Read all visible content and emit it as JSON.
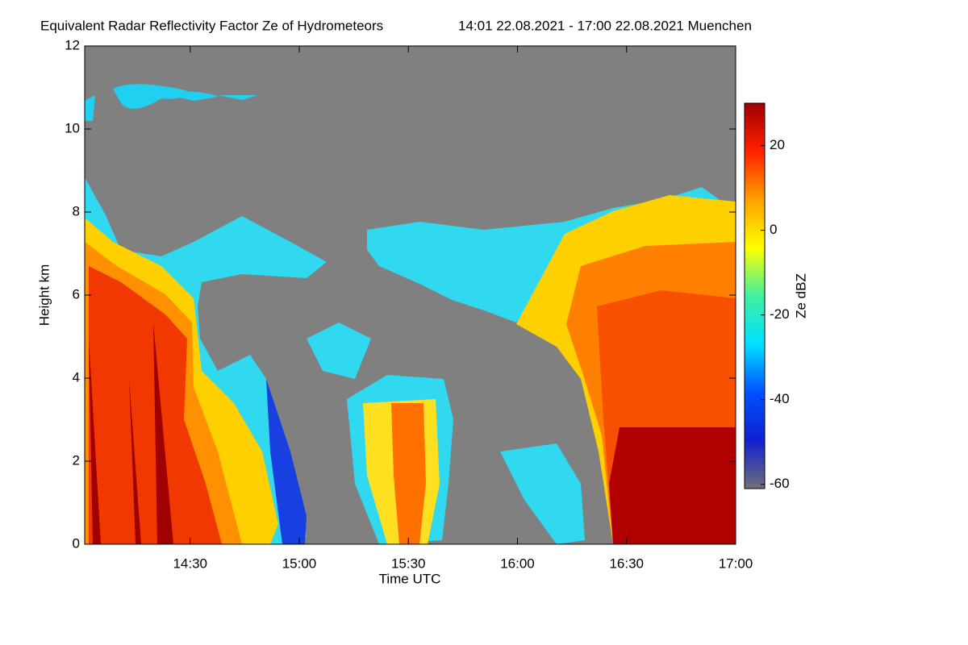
{
  "chart_data": {
    "type": "heatmap",
    "title": "Equivalent Radar Reflectivity Factor Ze of Hydrometeors",
    "subtitle": "14:01 22.08.2021 - 17:00 22.08.2021 Muenchen",
    "x_label": "Time UTC",
    "y_label": "Height km",
    "xlim": [
      841,
      1020
    ],
    "xticks": [
      {
        "value": 870,
        "label": "14:30"
      },
      {
        "value": 900,
        "label": "15:00"
      },
      {
        "value": 930,
        "label": "15:30"
      },
      {
        "value": 960,
        "label": "16:00"
      },
      {
        "value": 990,
        "label": "16:30"
      },
      {
        "value": 1020,
        "label": "17:00"
      }
    ],
    "ylim": [
      0,
      12
    ],
    "yticks": [
      0,
      2,
      4,
      6,
      8,
      10,
      12
    ],
    "colorbar": {
      "label": "Ze dBZ",
      "lim": [
        -61,
        30
      ],
      "ticks": [
        -60,
        -40,
        -20,
        0,
        20
      ],
      "colormap": [
        "#707078",
        "#1020d0",
        "#0050ff",
        "#00e0ff",
        "#40f0a0",
        "#ffff00",
        "#ffa000",
        "#ff2000",
        "#a00000"
      ]
    },
    "missing_color": "#808080"
  }
}
